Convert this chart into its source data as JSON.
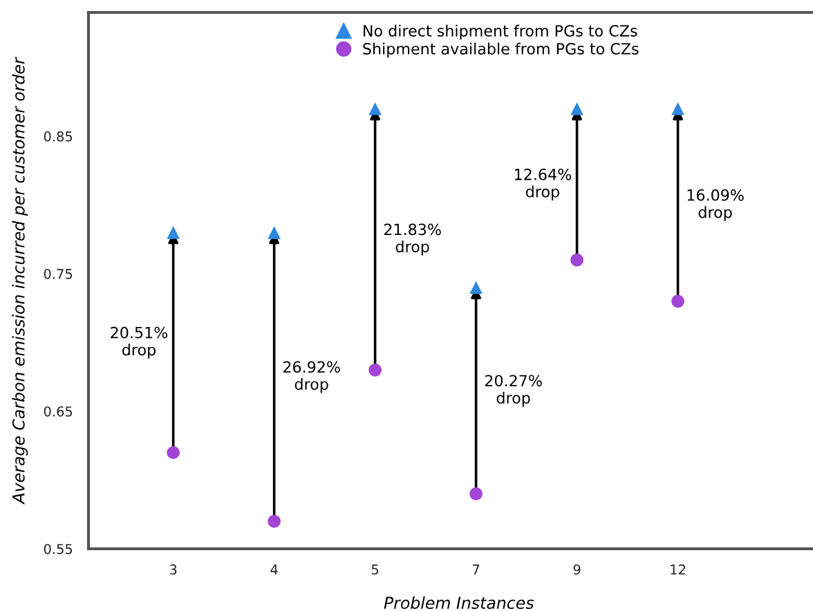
{
  "chart_data": {
    "type": "scatter",
    "xlabel": "Problem Instances",
    "ylabel": "Average Carbon emission incurred per customer order",
    "categories": [
      "3",
      "4",
      "5",
      "7",
      "9",
      "12"
    ],
    "series": [
      {
        "name": "No direct shipment from PGs to CZs",
        "color": "#2f88e0",
        "marker": "triangle",
        "values": [
          0.78,
          0.78,
          0.87,
          0.74,
          0.87,
          0.87
        ]
      },
      {
        "name": "Shipment available from PGs to CZs",
        "color": "#a244d6",
        "marker": "circle",
        "values": [
          0.62,
          0.57,
          0.68,
          0.59,
          0.76,
          0.73
        ]
      }
    ],
    "ylim": [
      0.55,
      0.94
    ],
    "yticks": [
      0.55,
      0.65,
      0.75,
      0.85
    ],
    "grid": false,
    "legend": "top right",
    "annotations": [
      "20.51%\ndrop",
      "26.92%\ndrop",
      "21.83%\ndrop",
      "20.27%\ndrop",
      "12.64%\ndrop",
      "16.09%\ndrop"
    ]
  }
}
